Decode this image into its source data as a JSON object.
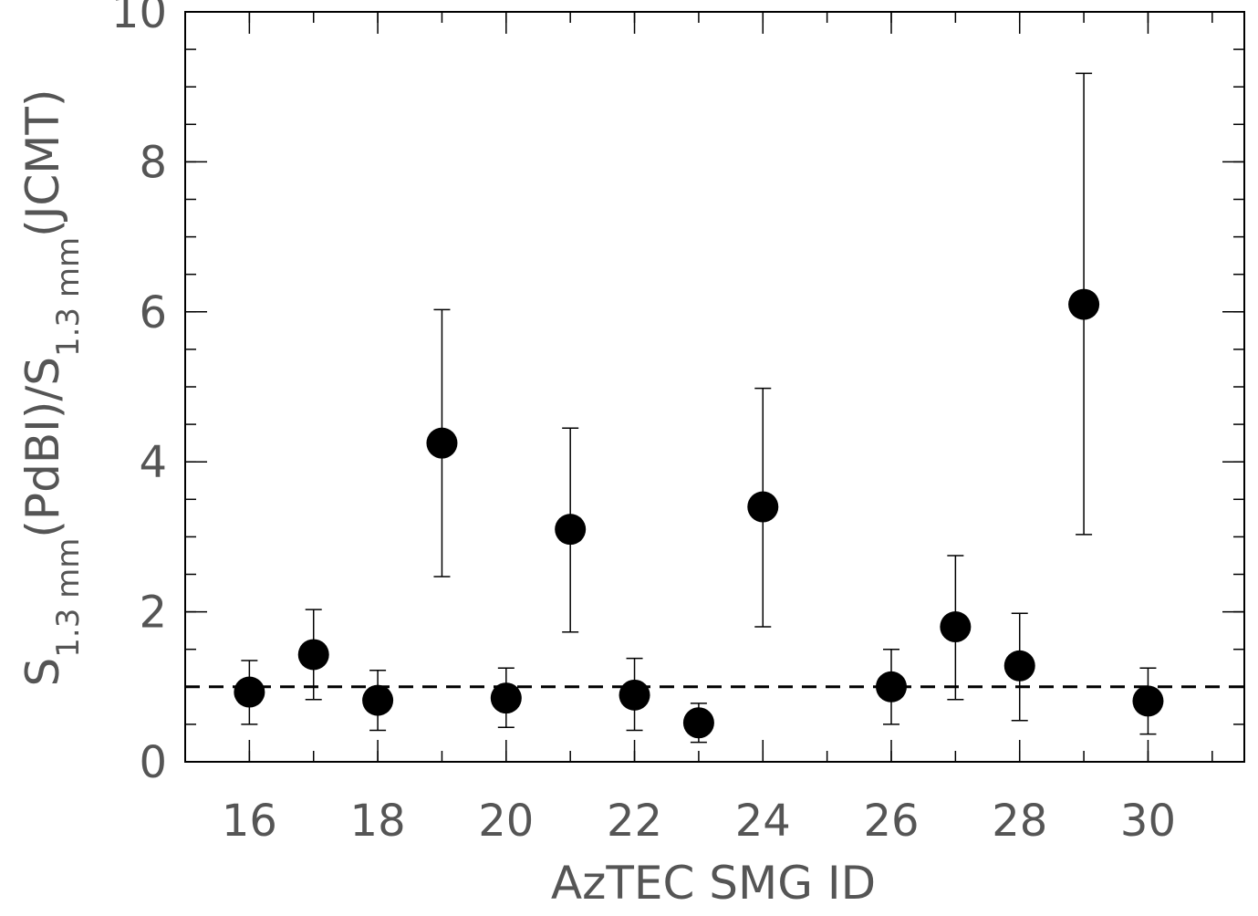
{
  "chart_data": {
    "type": "scatter",
    "xlabel": "AzTEC SMG ID",
    "ylabel": {
      "parts": [
        "S",
        "1.3 mm",
        "(PdBI)/S",
        "1.3 mm",
        "(JCMT)"
      ]
    },
    "xlim": [
      15,
      31.5
    ],
    "ylim": [
      0,
      10
    ],
    "x_ticks": [
      16,
      18,
      20,
      22,
      24,
      26,
      28,
      30
    ],
    "y_ticks": [
      0,
      2,
      4,
      6,
      8,
      10
    ],
    "x_minor_step": 1,
    "y_minor_step": 0.5,
    "grid": false,
    "reference_line": {
      "y": 1.0,
      "style": "dashed"
    },
    "points": [
      {
        "x": 16,
        "y": 0.93,
        "err_low": 0.5,
        "err_high": 1.35
      },
      {
        "x": 17,
        "y": 1.43,
        "err_low": 0.83,
        "err_high": 2.03
      },
      {
        "x": 18,
        "y": 0.82,
        "err_low": 0.42,
        "err_high": 1.22
      },
      {
        "x": 19,
        "y": 4.25,
        "err_low": 2.47,
        "err_high": 6.03
      },
      {
        "x": 20,
        "y": 0.85,
        "err_low": 0.46,
        "err_high": 1.25
      },
      {
        "x": 21,
        "y": 3.1,
        "err_low": 1.73,
        "err_high": 4.45
      },
      {
        "x": 22,
        "y": 0.89,
        "err_low": 0.42,
        "err_high": 1.38
      },
      {
        "x": 23,
        "y": 0.52,
        "err_low": 0.26,
        "err_high": 0.78
      },
      {
        "x": 24,
        "y": 3.4,
        "err_low": 1.8,
        "err_high": 4.98
      },
      {
        "x": 26,
        "y": 1.0,
        "err_low": 0.5,
        "err_high": 1.5
      },
      {
        "x": 27,
        "y": 1.8,
        "err_low": 0.83,
        "err_high": 2.75
      },
      {
        "x": 28,
        "y": 1.28,
        "err_low": 0.55,
        "err_high": 1.98
      },
      {
        "x": 29,
        "y": 6.1,
        "err_low": 3.03,
        "err_high": 9.18
      },
      {
        "x": 30,
        "y": 0.81,
        "err_low": 0.37,
        "err_high": 1.25
      }
    ]
  }
}
